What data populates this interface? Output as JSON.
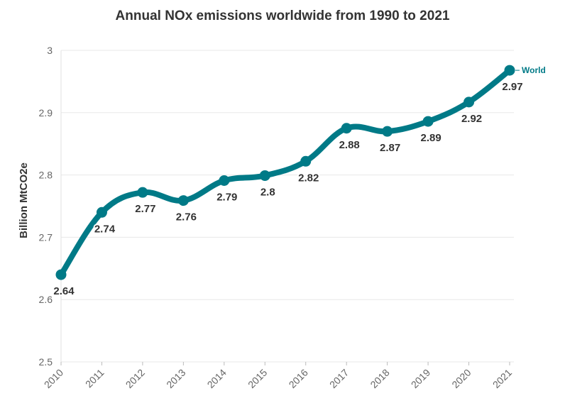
{
  "chart_data": {
    "type": "line",
    "title": "Annual NOx emissions worldwide from 1990 to 2021",
    "xlabel": "",
    "ylabel": "Billion MtCO2e",
    "categories": [
      "2010",
      "2011",
      "2012",
      "2013",
      "2014",
      "2015",
      "2016",
      "2017",
      "2018",
      "2019",
      "2020",
      "2021"
    ],
    "series": [
      {
        "name": "World",
        "color": "#007a87",
        "values": [
          2.64,
          2.74,
          2.772,
          2.759,
          2.791,
          2.799,
          2.822,
          2.875,
          2.87,
          2.886,
          2.917,
          2.968
        ],
        "labels": [
          "2.64",
          "2.74",
          "2.77",
          "2.76",
          "2.79",
          "2.8",
          "2.82",
          "2.88",
          "2.87",
          "2.89",
          "2.92",
          "2.97"
        ]
      }
    ],
    "ylim": [
      2.5,
      3.0
    ],
    "yticks": [
      "2.5",
      "2.6",
      "2.7",
      "2.8",
      "2.9",
      "3"
    ],
    "grid": true,
    "legend": "end-of-line label"
  }
}
